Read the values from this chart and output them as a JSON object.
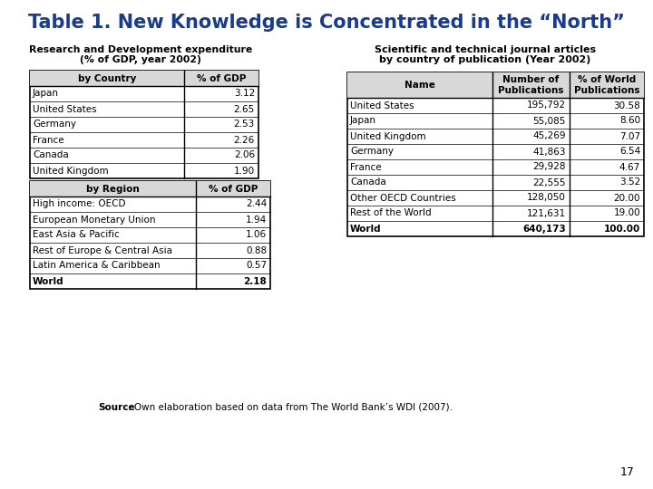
{
  "title": "Table 1. New Knowledge is Concentrated in the “North”",
  "title_color": "#1a3a8c",
  "title_fontsize": 15,
  "bg_color": "#ffffff",
  "rd_title_line1": "Research and Development expenditure",
  "rd_title_line2": "(% of GDP, year 2002)",
  "country_table_headers": [
    "by Country",
    "% of GDP"
  ],
  "country_table_data": [
    [
      "Japan",
      "3.12"
    ],
    [
      "United States",
      "2.65"
    ],
    [
      "Germany",
      "2.53"
    ],
    [
      "France",
      "2.26"
    ],
    [
      "Canada",
      "2.06"
    ],
    [
      "United Kingdom",
      "1.90"
    ]
  ],
  "region_table_headers": [
    "by Region",
    "% of GDP"
  ],
  "region_table_data": [
    [
      "High income: OECD",
      "2.44"
    ],
    [
      "European Monetary Union",
      "1.94"
    ],
    [
      "East Asia & Pacific",
      "1.06"
    ],
    [
      "Rest of Europe & Central Asia",
      "0.88"
    ],
    [
      "Latin America & Caribbean",
      "0.57"
    ],
    [
      "World",
      "2.18"
    ]
  ],
  "sci_title_line1": "Scientific and technical journal articles",
  "sci_title_line2": "by country of publication (Year 2002)",
  "sci_table_headers": [
    "Name",
    "Number of\nPublications",
    "% of World\nPublications"
  ],
  "sci_table_data": [
    [
      "United States",
      "195,792",
      "30.58"
    ],
    [
      "Japan",
      "55,085",
      "8.60"
    ],
    [
      "United Kingdom",
      "45,269",
      "7.07"
    ],
    [
      "Germany",
      "41,863",
      "6.54"
    ],
    [
      "France",
      "29,928",
      "4.67"
    ],
    [
      "Canada",
      "22,555",
      "3.52"
    ],
    [
      "Other OECD Countries",
      "128,050",
      "20.00"
    ],
    [
      "Rest of the World",
      "121,631",
      "19.00"
    ],
    [
      "World",
      "640,173",
      "100.00"
    ]
  ],
  "source_bold": "Source",
  "source_rest": ": Own elaboration based on data from The World Bank’s WDI (2007).",
  "page_number": "17"
}
